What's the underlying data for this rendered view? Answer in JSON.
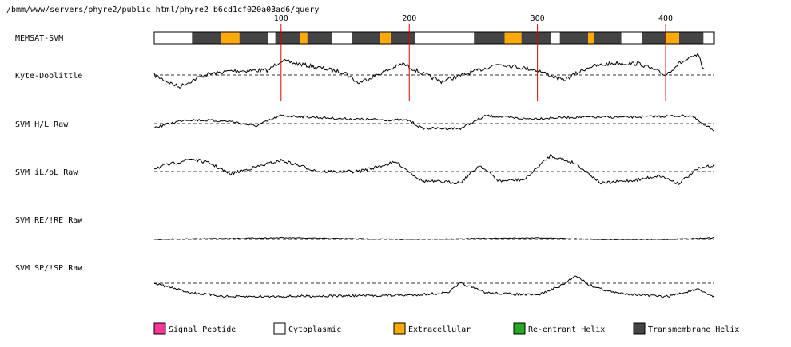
{
  "path": "/bmm/www/servers/phyre2/public_html/phyre2_b6cd1cf020a03ad6/query",
  "chart_data": {
    "type": "line",
    "x_axis": {
      "range": [
        1,
        438
      ],
      "ticks": [
        100,
        200,
        300,
        400
      ]
    },
    "tracks": [
      {
        "label": "MEMSAT-SVM",
        "type": "topology"
      },
      {
        "label": "Kyte-Doolittle",
        "type": "profile"
      },
      {
        "label": "SVM H/L Raw",
        "type": "profile"
      },
      {
        "label": "SVM iL/oL Raw",
        "type": "profile"
      },
      {
        "label": "SVM RE/!RE Raw",
        "type": "profile"
      },
      {
        "label": "SVM SP/!SP Raw",
        "type": "profile"
      }
    ],
    "topology_segments": [
      {
        "start": 1,
        "end": 30,
        "class": "Cytoplasmic"
      },
      {
        "start": 31,
        "end": 53,
        "class": "Transmembrane Helix"
      },
      {
        "start": 54,
        "end": 67,
        "class": "Extracellular"
      },
      {
        "start": 68,
        "end": 89,
        "class": "Transmembrane Helix"
      },
      {
        "start": 90,
        "end": 95,
        "class": "Cytoplasmic"
      },
      {
        "start": 96,
        "end": 114,
        "class": "Transmembrane Helix"
      },
      {
        "start": 115,
        "end": 120,
        "class": "Extracellular"
      },
      {
        "start": 121,
        "end": 139,
        "class": "Transmembrane Helix"
      },
      {
        "start": 140,
        "end": 155,
        "class": "Cytoplasmic"
      },
      {
        "start": 156,
        "end": 177,
        "class": "Transmembrane Helix"
      },
      {
        "start": 178,
        "end": 185,
        "class": "Extracellular"
      },
      {
        "start": 186,
        "end": 204,
        "class": "Transmembrane Helix"
      },
      {
        "start": 205,
        "end": 250,
        "class": "Cytoplasmic"
      },
      {
        "start": 251,
        "end": 274,
        "class": "Transmembrane Helix"
      },
      {
        "start": 275,
        "end": 287,
        "class": "Extracellular"
      },
      {
        "start": 288,
        "end": 310,
        "class": "Transmembrane Helix"
      },
      {
        "start": 311,
        "end": 317,
        "class": "Cytoplasmic"
      },
      {
        "start": 318,
        "end": 339,
        "class": "Transmembrane Helix"
      },
      {
        "start": 340,
        "end": 344,
        "class": "Extracellular"
      },
      {
        "start": 345,
        "end": 365,
        "class": "Transmembrane Helix"
      },
      {
        "start": 366,
        "end": 381,
        "class": "Cytoplasmic"
      },
      {
        "start": 382,
        "end": 400,
        "class": "Transmembrane Helix"
      },
      {
        "start": 401,
        "end": 410,
        "class": "Extracellular"
      },
      {
        "start": 411,
        "end": 429,
        "class": "Transmembrane Helix"
      },
      {
        "start": 430,
        "end": 438,
        "class": "Cytoplasmic"
      }
    ],
    "legend": [
      {
        "label": "Signal Peptide",
        "color": "#ff3399"
      },
      {
        "label": "Cytoplasmic",
        "color": "#ffffff"
      },
      {
        "label": "Extracellular",
        "color": "#ffaa00"
      },
      {
        "label": "Re-entrant Helix",
        "color": "#22aa22"
      },
      {
        "label": "Transmembrane Helix",
        "color": "#444444"
      }
    ],
    "profile_colors": {
      "line": "#000000",
      "threshold": "#333333",
      "marker": "#dd0000"
    }
  }
}
